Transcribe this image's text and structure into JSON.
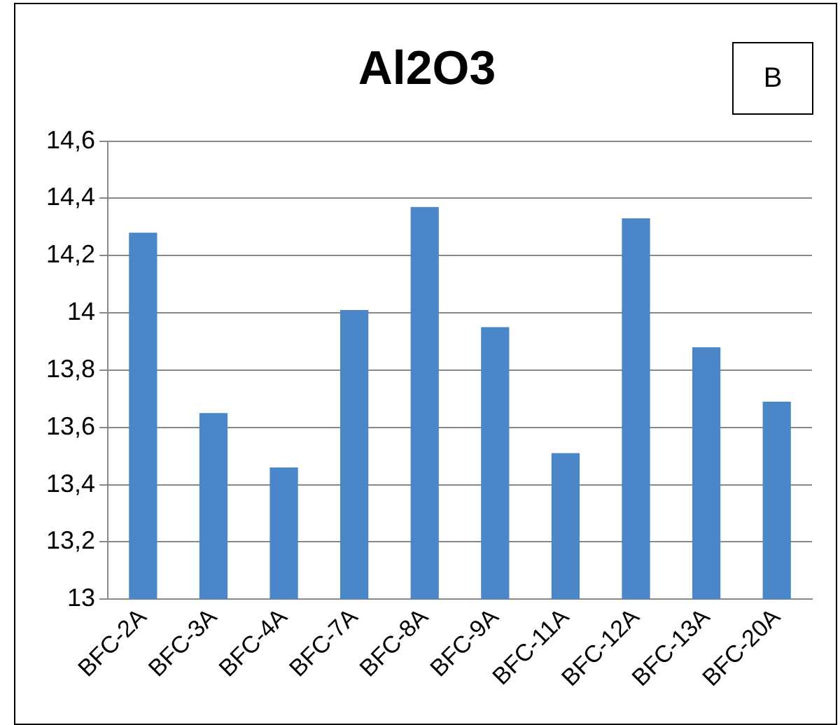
{
  "chart_data": {
    "type": "bar",
    "title": "Al2O3",
    "annotations": [
      "B"
    ],
    "categories": [
      "BFC-2A",
      "BFC-3A",
      "BFC-4A",
      "BFC-7A",
      "BFC-8A",
      "BFC-9A",
      "BFC-11A",
      "BFC-12A",
      "BFC-13A",
      "BFC-20A"
    ],
    "values": [
      14.28,
      13.65,
      13.46,
      14.01,
      14.37,
      13.95,
      13.51,
      14.33,
      13.88,
      13.69
    ],
    "color": "#4a86c8",
    "ylim": [
      13,
      14.6
    ],
    "yticks": [
      {
        "value": 13,
        "label": "13"
      },
      {
        "value": 13.2,
        "label": "13,2"
      },
      {
        "value": 13.4,
        "label": "13,4"
      },
      {
        "value": 13.6,
        "label": "13,6"
      },
      {
        "value": 13.8,
        "label": "13,8"
      },
      {
        "value": 14,
        "label": "14"
      },
      {
        "value": 14.2,
        "label": "14,2"
      },
      {
        "value": 14.4,
        "label": "14,4"
      },
      {
        "value": 14.6,
        "label": "14,6"
      }
    ],
    "grid": "y",
    "legend": false
  }
}
